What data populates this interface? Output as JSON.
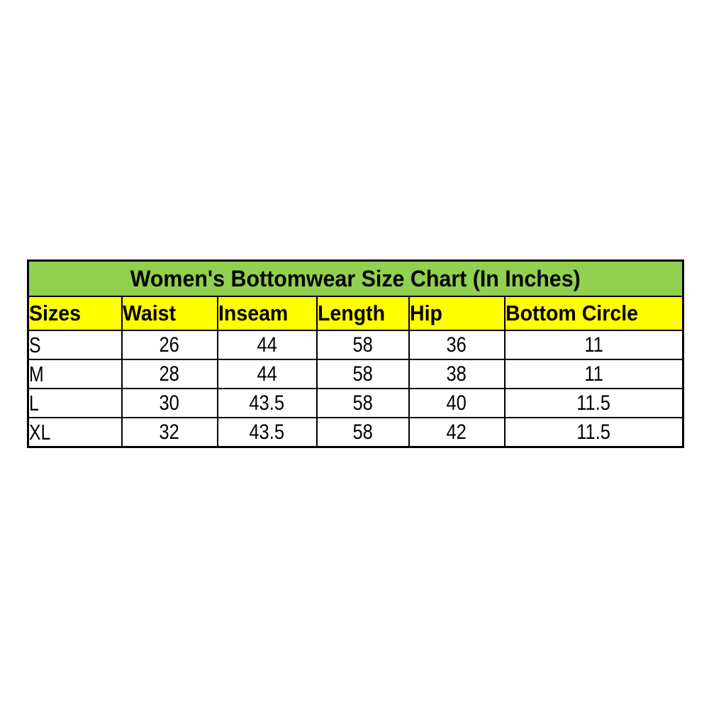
{
  "chart_data": {
    "type": "table",
    "title": "Women's Bottomwear Size Chart (In Inches)",
    "columns": [
      "Sizes",
      "Waist",
      "Inseam",
      "Length",
      "Hip",
      "Bottom Circle"
    ],
    "rows": [
      {
        "size": "S",
        "values": [
          26,
          44,
          58,
          36,
          11
        ]
      },
      {
        "size": "M",
        "values": [
          28,
          44,
          58,
          38,
          11
        ]
      },
      {
        "size": "L",
        "values": [
          30,
          43.5,
          58,
          40,
          11.5
        ]
      },
      {
        "size": "XL",
        "values": [
          32,
          43.5,
          58,
          42,
          11.5
        ]
      }
    ],
    "units": "Inches"
  },
  "colors": {
    "title_background": "#92D050",
    "header_background": "#FFFF00",
    "cell_background": "#FFFFFF",
    "border": "#000000",
    "text": "#000000",
    "page_background": "#FFFFFF"
  }
}
